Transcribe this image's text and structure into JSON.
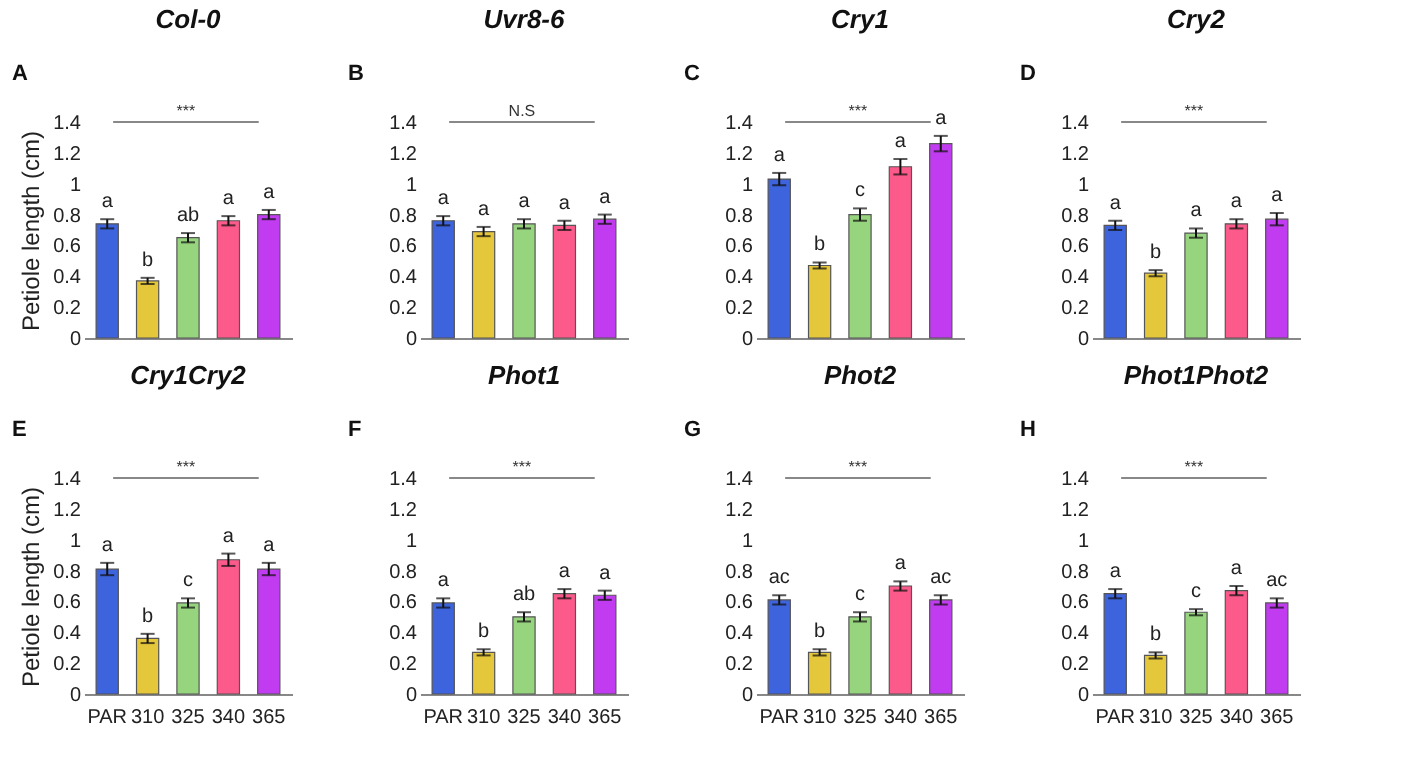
{
  "chart_data": [
    {
      "type": "bar",
      "title": "Col-0",
      "ylabel": "Petiole length (cm)",
      "categories": [
        null,
        null,
        null,
        null,
        null
      ],
      "values": [
        0.74,
        0.37,
        0.65,
        0.76,
        0.8
      ],
      "errors": [
        0.03,
        0.02,
        0.03,
        0.03,
        0.03
      ],
      "value_labels": [
        "a",
        "b",
        "ab",
        "a",
        "a"
      ],
      "colors": [
        "#3d63dd",
        "#e5c73b",
        "#97d47e",
        "#fd5a8c",
        "#c13cf0"
      ],
      "annotations": [
        "A",
        "***"
      ],
      "ylim": [
        0,
        1.4
      ],
      "yticks": [
        0,
        0.2,
        0.4,
        0.6,
        0.8,
        1,
        1.2,
        1.4
      ],
      "tick_labels": "y"
    },
    {
      "type": "bar",
      "title": "Uvr8-6",
      "categories": [
        null,
        null,
        null,
        null,
        null
      ],
      "values": [
        0.76,
        0.69,
        0.74,
        0.73,
        0.77
      ],
      "errors": [
        0.03,
        0.03,
        0.03,
        0.03,
        0.03
      ],
      "value_labels": [
        "a",
        "a",
        "a",
        "a",
        "a"
      ],
      "colors": [
        "#3d63dd",
        "#e5c73b",
        "#97d47e",
        "#fd5a8c",
        "#c13cf0"
      ],
      "annotations": [
        "B",
        "N.S"
      ],
      "ylim": [
        0,
        1.4
      ],
      "yticks": [
        0,
        0.2,
        0.4,
        0.6,
        0.8,
        1,
        1.2,
        1.4
      ],
      "tick_labels": "y"
    },
    {
      "type": "bar",
      "title": "Cry1",
      "categories": [
        null,
        null,
        null,
        null,
        null
      ],
      "values": [
        1.03,
        0.47,
        0.8,
        1.11,
        1.26
      ],
      "errors": [
        0.04,
        0.02,
        0.04,
        0.05,
        0.05
      ],
      "value_labels": [
        "a",
        "b",
        "c",
        "a",
        "a"
      ],
      "colors": [
        "#3d63dd",
        "#e5c73b",
        "#97d47e",
        "#fd5a8c",
        "#c13cf0"
      ],
      "annotations": [
        "C",
        "***"
      ],
      "ylim": [
        0,
        1.4
      ],
      "yticks": [
        0,
        0.2,
        0.4,
        0.6,
        0.8,
        1,
        1.2,
        1.4
      ],
      "tick_labels": "y"
    },
    {
      "type": "bar",
      "title": "Cry2",
      "categories": [
        null,
        null,
        null,
        null,
        null
      ],
      "values": [
        0.73,
        0.42,
        0.68,
        0.74,
        0.77
      ],
      "errors": [
        0.03,
        0.02,
        0.03,
        0.03,
        0.04
      ],
      "value_labels": [
        "a",
        "b",
        "a",
        "a",
        "a"
      ],
      "colors": [
        "#3d63dd",
        "#e5c73b",
        "#97d47e",
        "#fd5a8c",
        "#c13cf0"
      ],
      "annotations": [
        "D",
        "***"
      ],
      "ylim": [
        0,
        1.4
      ],
      "yticks": [
        0,
        0.2,
        0.4,
        0.6,
        0.8,
        1,
        1.2,
        1.4
      ],
      "tick_labels": "y"
    },
    {
      "type": "bar",
      "title": "Cry1Cry2",
      "ylabel": "Petiole length (cm)",
      "categories": [
        "PAR",
        "310",
        "325",
        "340",
        "365"
      ],
      "values": [
        0.81,
        0.36,
        0.59,
        0.87,
        0.81
      ],
      "errors": [
        0.04,
        0.03,
        0.03,
        0.04,
        0.04
      ],
      "value_labels": [
        "a",
        "b",
        "c",
        "a",
        "a"
      ],
      "colors": [
        "#3d63dd",
        "#e5c73b",
        "#97d47e",
        "#fd5a8c",
        "#c13cf0"
      ],
      "annotations": [
        "E",
        "***"
      ],
      "ylim": [
        0,
        1.4
      ],
      "yticks": [
        0,
        0.2,
        0.4,
        0.6,
        0.8,
        1,
        1.2,
        1.4
      ]
    },
    {
      "type": "bar",
      "title": "Phot1",
      "categories": [
        "PAR",
        "310",
        "325",
        "340",
        "365"
      ],
      "values": [
        0.59,
        0.27,
        0.5,
        0.65,
        0.64
      ],
      "errors": [
        0.03,
        0.02,
        0.03,
        0.03,
        0.03
      ],
      "value_labels": [
        "a",
        "b",
        "ab",
        "a",
        "a"
      ],
      "colors": [
        "#3d63dd",
        "#e5c73b",
        "#97d47e",
        "#fd5a8c",
        "#c13cf0"
      ],
      "annotations": [
        "F",
        "***"
      ],
      "ylim": [
        0,
        1.4
      ],
      "yticks": [
        0,
        0.2,
        0.4,
        0.6,
        0.8,
        1,
        1.2,
        1.4
      ]
    },
    {
      "type": "bar",
      "title": "Phot2",
      "categories": [
        "PAR",
        "310",
        "325",
        "340",
        "365"
      ],
      "values": [
        0.61,
        0.27,
        0.5,
        0.7,
        0.61
      ],
      "errors": [
        0.03,
        0.02,
        0.03,
        0.03,
        0.03
      ],
      "value_labels": [
        "ac",
        "b",
        "c",
        "a",
        "ac"
      ],
      "colors": [
        "#3d63dd",
        "#e5c73b",
        "#97d47e",
        "#fd5a8c",
        "#c13cf0"
      ],
      "annotations": [
        "G",
        "***"
      ],
      "ylim": [
        0,
        1.4
      ],
      "yticks": [
        0,
        0.2,
        0.4,
        0.6,
        0.8,
        1,
        1.2,
        1.4
      ]
    },
    {
      "type": "bar",
      "title": "Phot1Phot2",
      "categories": [
        "PAR",
        "310",
        "325",
        "340",
        "365"
      ],
      "values": [
        0.65,
        0.25,
        0.53,
        0.67,
        0.59
      ],
      "errors": [
        0.03,
        0.02,
        0.02,
        0.03,
        0.03
      ],
      "value_labels": [
        "a",
        "b",
        "c",
        "a",
        "ac"
      ],
      "colors": [
        "#3d63dd",
        "#e5c73b",
        "#97d47e",
        "#fd5a8c",
        "#c13cf0"
      ],
      "annotations": [
        "H",
        "***"
      ],
      "ylim": [
        0,
        1.4
      ],
      "yticks": [
        0,
        0.2,
        0.4,
        0.6,
        0.8,
        1,
        1.2,
        1.4
      ]
    }
  ]
}
